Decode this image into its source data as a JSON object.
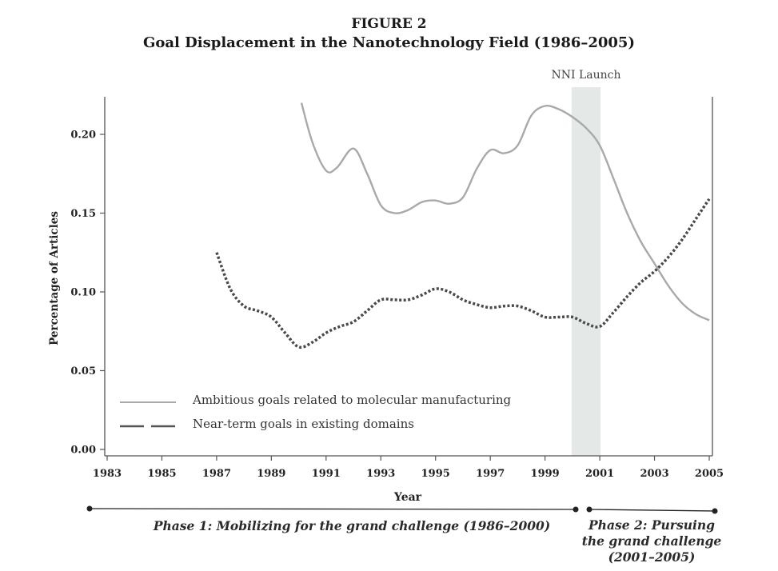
{
  "figure": {
    "label": "FIGURE 2",
    "title": "Goal Displacement in the Nanotechnology Field (1986–2005)"
  },
  "chart_data": {
    "type": "line",
    "title": "Goal Displacement in the Nanotechnology Field (1986–2005)",
    "xlabel": "Year",
    "ylabel": "Percentage of Articles",
    "xlim": [
      1983,
      2005
    ],
    "ylim": [
      0,
      0.22
    ],
    "xticks": [
      "1983",
      "1985",
      "1987",
      "1989",
      "1991",
      "1993",
      "1995",
      "1997",
      "1999",
      "2001",
      "2003",
      "2005"
    ],
    "yticks": [
      "0.00",
      "0.05",
      "0.10",
      "0.15",
      "0.20"
    ],
    "grid": false,
    "legend_position": "bottom-left",
    "series": [
      {
        "name": "Ambitious goals related to molecular manufacturing",
        "style": "solid",
        "color": "#a9a9a9",
        "x": [
          1990.1,
          1990.5,
          1991.0,
          1991.4,
          1992.0,
          1992.5,
          1993.0,
          1993.5,
          1994.0,
          1994.5,
          1995.0,
          1995.5,
          1996.0,
          1996.5,
          1997.0,
          1997.5,
          1998.0,
          1998.5,
          1999.0,
          1999.5,
          2000.0,
          2000.5,
          2001.0,
          2001.5,
          2002.0,
          2002.5,
          2003.0,
          2003.5,
          2004.0,
          2004.5,
          2005.0
        ],
        "y": [
          0.224,
          0.195,
          0.177,
          0.179,
          0.191,
          0.175,
          0.155,
          0.15,
          0.152,
          0.157,
          0.158,
          0.156,
          0.16,
          0.178,
          0.19,
          0.188,
          0.193,
          0.212,
          0.218,
          0.216,
          0.211,
          0.204,
          0.193,
          0.172,
          0.15,
          0.132,
          0.118,
          0.104,
          0.093,
          0.086,
          0.082
        ]
      },
      {
        "name": "Near-term goals in existing domains",
        "style": "dashed",
        "color": "#4a4a4a",
        "x": [
          1987.0,
          1987.5,
          1988.0,
          1988.5,
          1989.0,
          1989.5,
          1990.0,
          1990.5,
          1991.0,
          1991.5,
          1992.0,
          1992.5,
          1993.0,
          1993.5,
          1994.0,
          1994.5,
          1995.0,
          1995.5,
          1996.0,
          1996.5,
          1997.0,
          1997.5,
          1998.0,
          1998.5,
          1999.0,
          1999.5,
          2000.0,
          2000.5,
          2001.0,
          2001.5,
          2002.0,
          2002.5,
          2003.0,
          2003.5,
          2004.0,
          2004.5,
          2005.0
        ],
        "y": [
          0.125,
          0.102,
          0.091,
          0.088,
          0.084,
          0.074,
          0.065,
          0.068,
          0.074,
          0.078,
          0.081,
          0.088,
          0.095,
          0.095,
          0.095,
          0.098,
          0.102,
          0.1,
          0.095,
          0.092,
          0.09,
          0.091,
          0.091,
          0.088,
          0.084,
          0.084,
          0.084,
          0.08,
          0.078,
          0.087,
          0.097,
          0.106,
          0.113,
          0.122,
          0.133,
          0.146,
          0.159
        ]
      }
    ],
    "annotations": [
      {
        "text": "NNI Launch",
        "x_range": [
          2000.0,
          2001.0
        ],
        "fill": "#e4e8e6"
      }
    ]
  },
  "phases": [
    {
      "label": "Phase 1: Mobilizing for the grand challenge (1986–2000)"
    },
    {
      "label_lines": [
        "Phase 2: Pursuing",
        "the grand challenge",
        "(2001–2005)"
      ]
    }
  ]
}
